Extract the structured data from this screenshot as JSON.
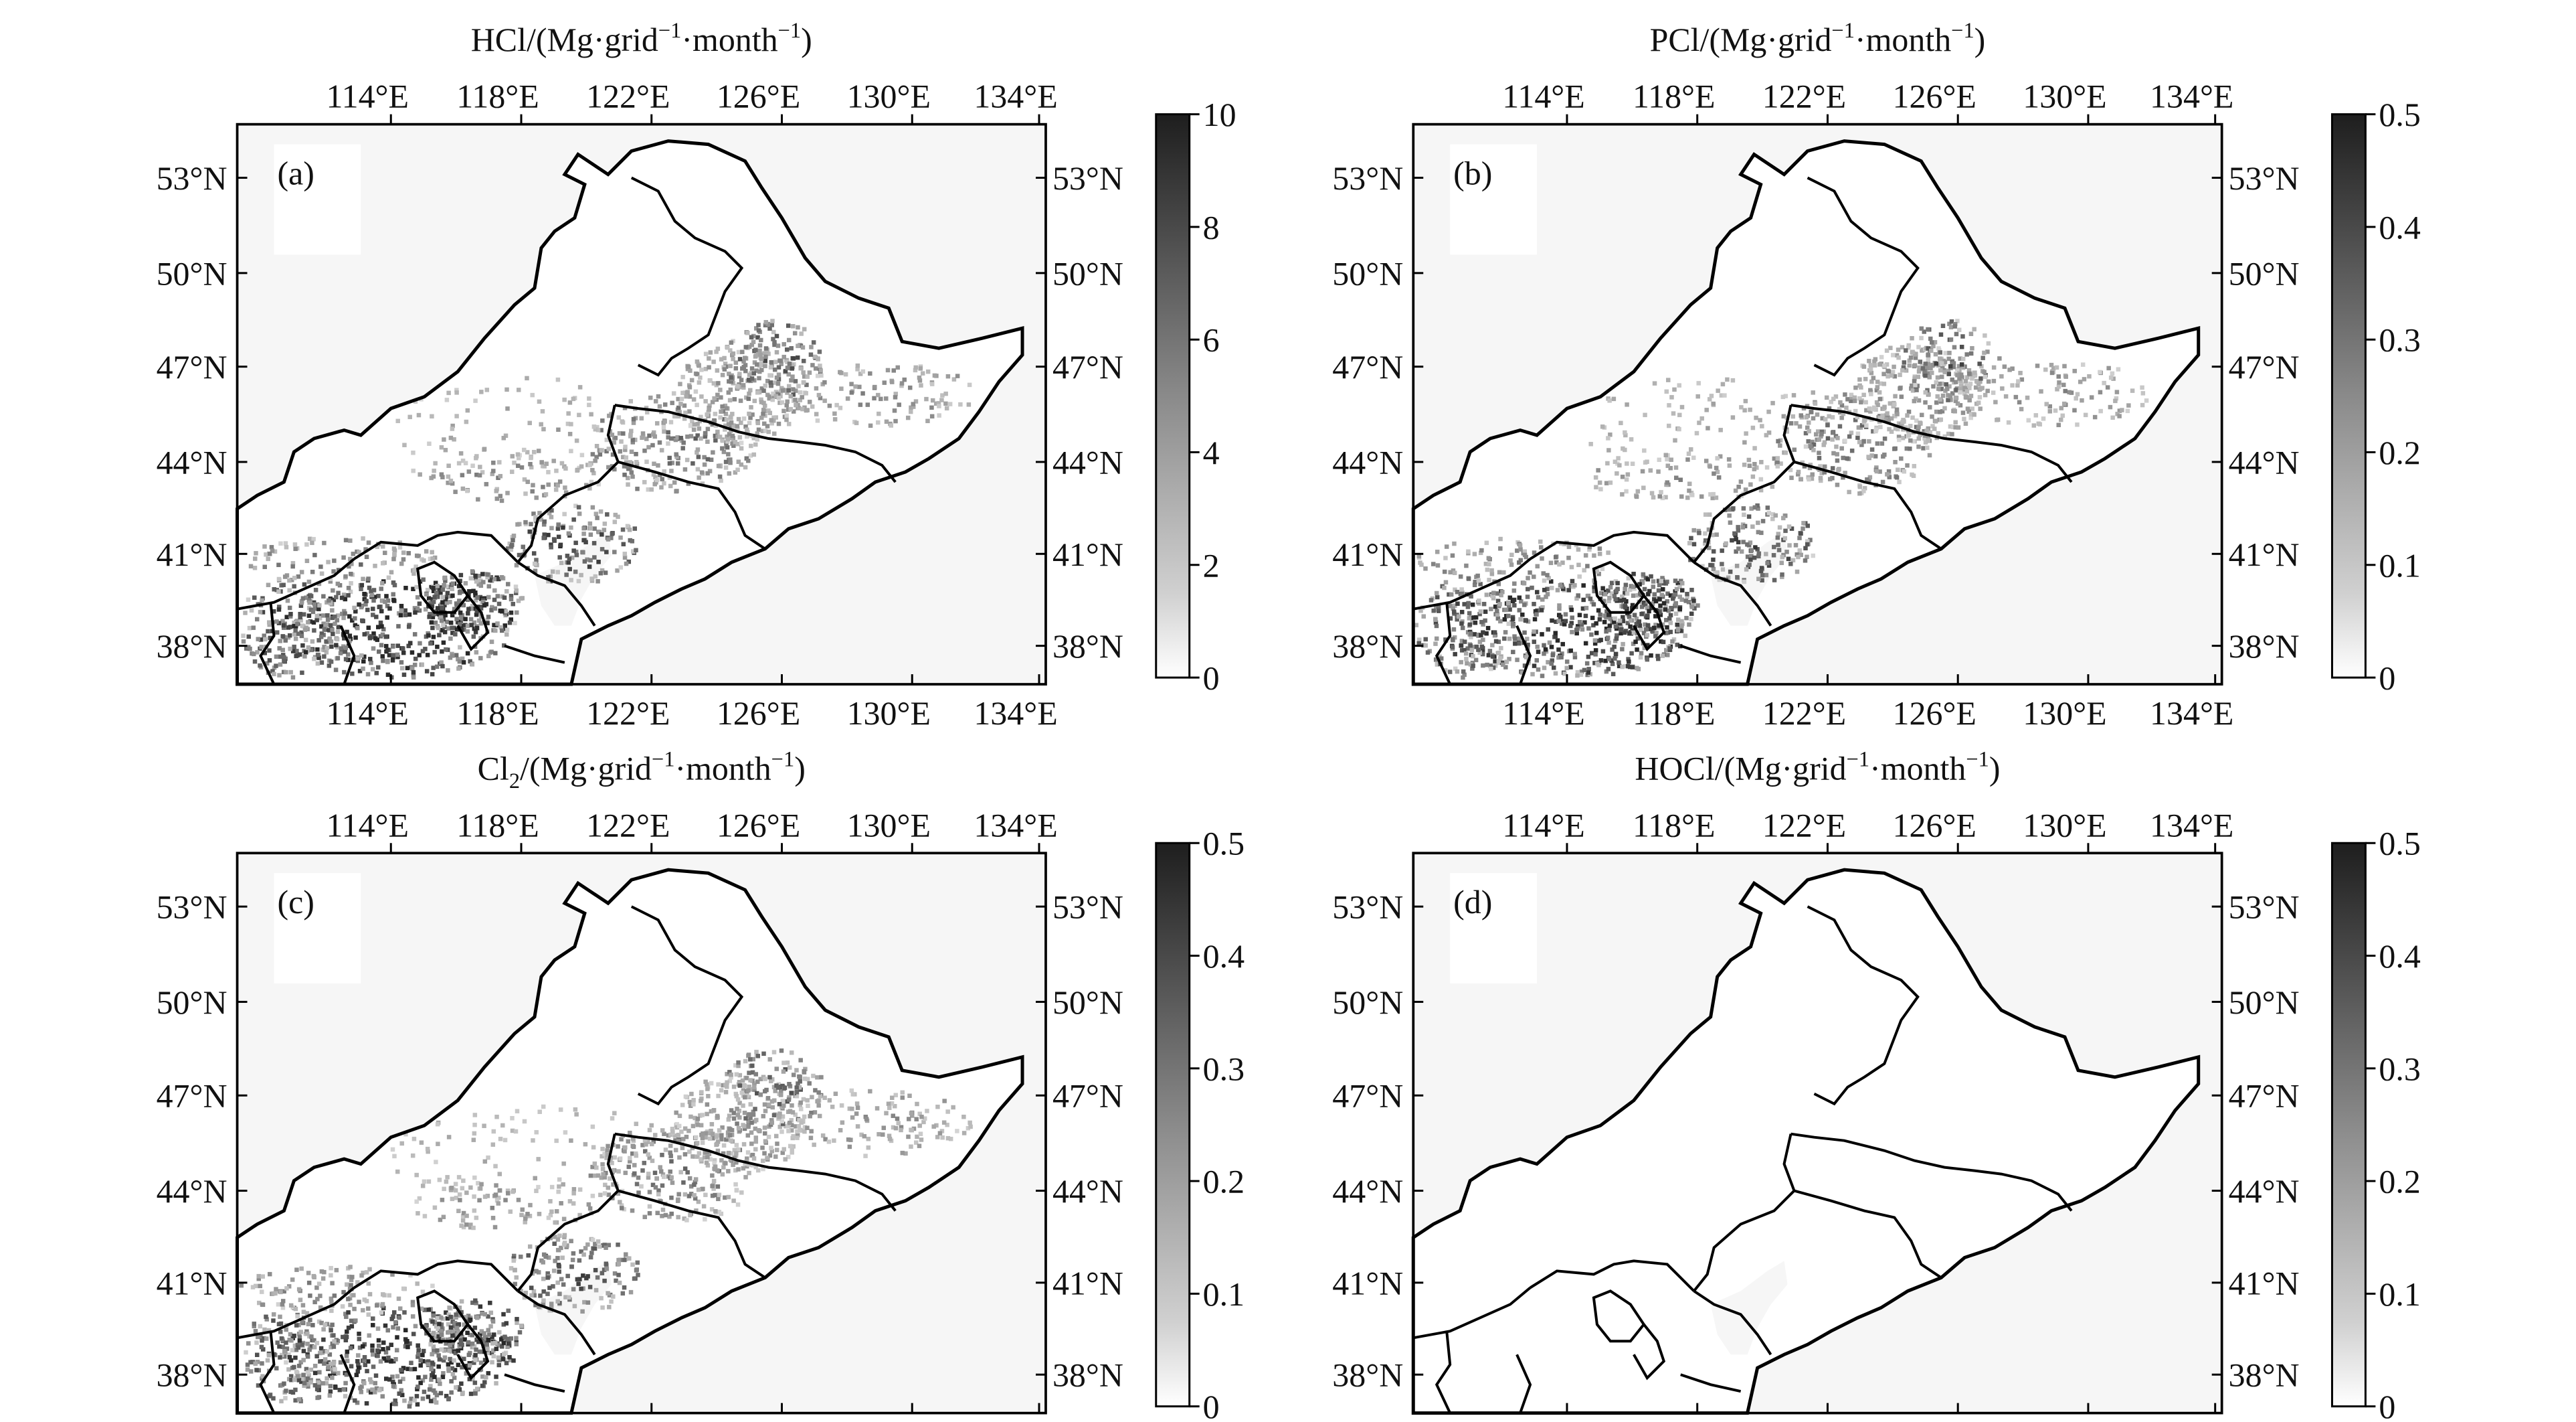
{
  "figure": {
    "panels": [
      {
        "id": "a",
        "letter": "(a)",
        "title_species": "HCl",
        "title_species_sub": "",
        "title_unit_open": "/(Mg·grid",
        "title_exp1": "−1",
        "title_unit_mid": "·month",
        "title_exp2": "−1",
        "title_unit_close": ")",
        "colorbar": {
          "ticks": [
            "0",
            "2",
            "4",
            "6",
            "8",
            "10"
          ]
        },
        "intensity": 1.0
      },
      {
        "id": "b",
        "letter": "(b)",
        "title_species": "PCl",
        "title_species_sub": "",
        "title_unit_open": "/(Mg·grid",
        "title_exp1": "−1",
        "title_unit_mid": "·month",
        "title_exp2": "−1",
        "title_unit_close": ")",
        "colorbar": {
          "ticks": [
            "0",
            "0.1",
            "0.2",
            "0.3",
            "0.4",
            "0.5"
          ]
        },
        "intensity": 0.95
      },
      {
        "id": "c",
        "letter": "(c)",
        "title_species": "Cl",
        "title_species_sub": "2",
        "title_unit_open": "/(Mg·grid",
        "title_exp1": "−1",
        "title_unit_mid": "·month",
        "title_exp2": "−1",
        "title_unit_close": ")",
        "colorbar": {
          "ticks": [
            "0",
            "0.1",
            "0.2",
            "0.3",
            "0.4",
            "0.5"
          ]
        },
        "intensity": 0.9
      },
      {
        "id": "d",
        "letter": "(d)",
        "title_species": "HOCl",
        "title_species_sub": "",
        "title_unit_open": "/(Mg·grid",
        "title_exp1": "−1",
        "title_unit_mid": "·month",
        "title_exp2": "−1",
        "title_unit_close": ")",
        "colorbar": {
          "ticks": [
            "0",
            "0.1",
            "0.2",
            "0.3",
            "0.4",
            "0.5"
          ]
        },
        "intensity": 0.0
      }
    ],
    "lon_ticks": [
      "114°E",
      "118°E",
      "122°E",
      "126°E",
      "130°E",
      "134°E"
    ],
    "lat_ticks": [
      "53°N",
      "50°N",
      "47°N",
      "44°N",
      "41°N",
      "38°N"
    ],
    "colors": {
      "ocean": "#f6f6f6",
      "land": "#ffffff",
      "boundary": "#000000",
      "emission_low": "#d2d2d2",
      "emission_high": "#2a2a2a"
    }
  }
}
